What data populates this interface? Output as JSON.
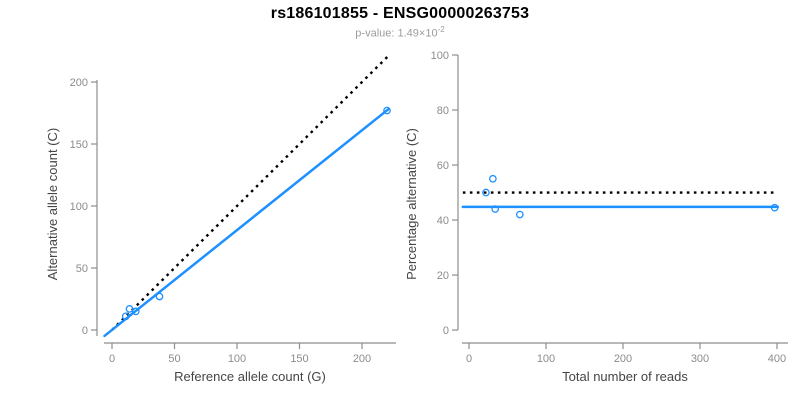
{
  "header": {
    "title": "rs186101855 - ENSG00000263753",
    "pvalue_text": "p-value: 1.49×10",
    "pvalue_exponent": "-2"
  },
  "colors": {
    "accent_blue": "#1E90FF",
    "dotted_line_black": "#000000",
    "axis_gray": "#8e8e8e",
    "tick_label_gray": "#8c8c8c",
    "axis_title_gray": "#454545",
    "subtitle_gray": "#9c9c9c",
    "title_black": "#000000",
    "background": "#ffffff"
  },
  "chart_data": [
    {
      "type": "scatter",
      "panel": "left",
      "xlabel": "Reference allele count (G)",
      "ylabel": "Alternative allele count (C)",
      "xticks": [
        0,
        50,
        100,
        150,
        200
      ],
      "yticks": [
        0,
        50,
        100,
        150,
        200
      ],
      "xlim": [
        -7.2,
        227.2
      ],
      "ylim": [
        -10.5,
        221.8
      ],
      "grid": false,
      "legend": "none",
      "points": [
        [
          11,
          11
        ],
        [
          14,
          17
        ],
        [
          19,
          15
        ],
        [
          38,
          27
        ],
        [
          220,
          177
        ]
      ],
      "lines": [
        {
          "name": "identity-line",
          "style": "dotted",
          "color": "#000000",
          "from": [
            0,
            0
          ],
          "to": [
            222,
            222
          ]
        },
        {
          "name": "regression-line",
          "style": "solid",
          "color": "#1E90FF",
          "from": [
            -6,
            -4.8
          ],
          "to": [
            221,
            178
          ]
        }
      ]
    },
    {
      "type": "scatter",
      "panel": "right",
      "xlabel": "Total number of reads",
      "ylabel": "Percentage alternative (C)",
      "xticks": [
        0,
        100,
        200,
        300,
        400
      ],
      "yticks": [
        0,
        20,
        40,
        60,
        80,
        100
      ],
      "xlim": [
        -9.1,
        414.3
      ],
      "ylim": [
        -4.7,
        100
      ],
      "grid": false,
      "legend": "none",
      "points": [
        [
          22,
          50
        ],
        [
          31,
          55
        ],
        [
          34,
          44
        ],
        [
          66,
          42
        ],
        [
          397,
          44.5
        ]
      ],
      "lines": [
        {
          "name": "expected-50-percent-line",
          "style": "dotted",
          "color": "#000000",
          "from": [
            -8,
            50
          ],
          "to": [
            397,
            50
          ]
        },
        {
          "name": "mean-percentage-line",
          "style": "solid",
          "color": "#1E90FF",
          "from": [
            -8,
            44.8
          ],
          "to": [
            401,
            44.8
          ]
        }
      ]
    }
  ]
}
